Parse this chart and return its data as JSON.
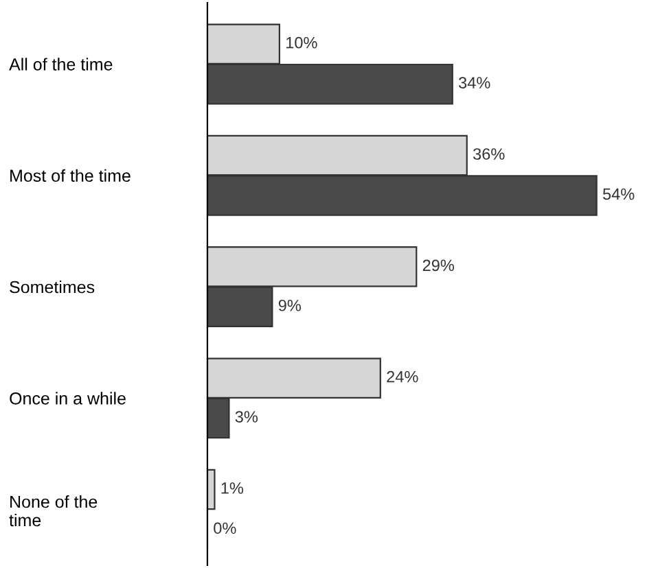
{
  "chart_data": {
    "type": "bar",
    "orientation": "horizontal",
    "categories": [
      "All of the time",
      "Most of the time",
      "Sometimes",
      "Once in a while",
      "None of the\ntime"
    ],
    "series": [
      {
        "color": "#d6d6d6",
        "values": [
          10,
          36,
          29,
          24,
          1
        ],
        "value_labels": [
          "10%",
          "36%",
          "29%",
          "24%",
          "1%"
        ]
      },
      {
        "color": "#4a4a4a",
        "values": [
          34,
          54,
          9,
          3,
          0
        ],
        "value_labels": [
          "34%",
          "54%",
          "9%",
          "3%",
          "0%"
        ]
      }
    ],
    "grid": false,
    "legend": false
  }
}
